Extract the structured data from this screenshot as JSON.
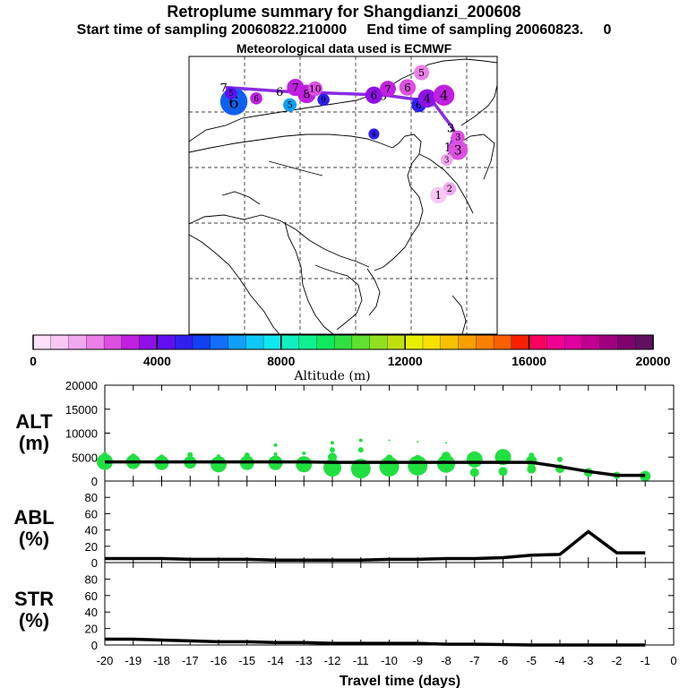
{
  "titles": {
    "line1": "Retroplume summary for Shangdianzi_200608",
    "line2": "Start time of sampling 20060822.210000     End time of sampling 20060823.     0",
    "line3": "Meteorological data used is ECMWF"
  },
  "colorbar": {
    "label": "Altitude (m)",
    "ticks": [
      "0",
      "4000",
      "8000",
      "12000",
      "16000",
      "20000"
    ],
    "colors": [
      "#fde0fa",
      "#f8c8f4",
      "#f2a8ee",
      "#ea80e8",
      "#dc50e0",
      "#c020e0",
      "#9010e8",
      "#6010f0",
      "#3020f0",
      "#1040f0",
      "#1070f8",
      "#10a0f8",
      "#10c8f8",
      "#10e8f0",
      "#10f0c0",
      "#10f090",
      "#10e860",
      "#30e040",
      "#60e030",
      "#90e020",
      "#c0e010",
      "#e8f000",
      "#f8e000",
      "#f8c000",
      "#f8a000",
      "#f88000",
      "#f86000",
      "#f82000",
      "#f80060",
      "#f00090",
      "#e000a0",
      "#c00090",
      "#a00080",
      "#800070",
      "#601060"
    ]
  },
  "map": {
    "trajectory": [
      {
        "label": "7",
        "lon": 76.5,
        "lat": 48.2
      },
      {
        "label": "6",
        "lon": 86.5,
        "lat": 47.6
      },
      {
        "label": "5",
        "lon": 105.0,
        "lat": 47.0
      },
      {
        "label": "4",
        "lon": 113.5,
        "lat": 46.0
      },
      {
        "label": "3",
        "lon": 117.0,
        "lat": 42.0
      },
      {
        "label": "2",
        "lon": 117.5,
        "lat": 41.0
      },
      {
        "label": "1",
        "lon": 116.5,
        "lat": 39.0
      }
    ],
    "clusters": [
      {
        "label": "6",
        "lon": 78.0,
        "lat": 46.0,
        "size": 3.2,
        "color": "#1060f0"
      },
      {
        "label": "5",
        "lon": 77.5,
        "lat": 47.3,
        "size": 0.8,
        "color": "#6010f0"
      },
      {
        "label": "6",
        "lon": 82.0,
        "lat": 46.5,
        "size": 0.8,
        "color": "#c020e0"
      },
      {
        "label": "5",
        "lon": 88.0,
        "lat": 45.5,
        "size": 1.0,
        "color": "#10a0f8"
      },
      {
        "label": "7",
        "lon": 89.0,
        "lat": 48.2,
        "size": 1.6,
        "color": "#c020e0"
      },
      {
        "label": "8",
        "lon": 91.0,
        "lat": 47.2,
        "size": 1.8,
        "color": "#c020e0"
      },
      {
        "label": "10",
        "lon": 92.5,
        "lat": 48.0,
        "size": 1.2,
        "color": "#dc50e0"
      },
      {
        "label": "9",
        "lon": 94.0,
        "lat": 46.3,
        "size": 0.8,
        "color": "#3020f0"
      },
      {
        "label": "6",
        "lon": 103.0,
        "lat": 47.0,
        "size": 1.6,
        "color": "#9010e8"
      },
      {
        "label": "7",
        "lon": 105.5,
        "lat": 48.0,
        "size": 1.4,
        "color": "#c020e0"
      },
      {
        "label": "6",
        "lon": 109.0,
        "lat": 48.2,
        "size": 1.5,
        "color": "#dc50e0"
      },
      {
        "label": "5",
        "lon": 111.5,
        "lat": 50.5,
        "size": 1.3,
        "color": "#ea80e8"
      },
      {
        "label": "6",
        "lon": 111.0,
        "lat": 45.5,
        "size": 1.2,
        "color": "#3020f0"
      },
      {
        "label": "4",
        "lon": 112.5,
        "lat": 46.5,
        "size": 1.8,
        "color": "#9010e8"
      },
      {
        "label": "4",
        "lon": 115.5,
        "lat": 47.0,
        "size": 2.2,
        "color": "#c020e0"
      },
      {
        "label": "4",
        "lon": 103.0,
        "lat": 41.0,
        "size": 0.6,
        "color": "#3020f0"
      },
      {
        "label": "3",
        "lon": 118.0,
        "lat": 38.5,
        "size": 2.0,
        "color": "#dc50e0"
      },
      {
        "label": "3",
        "lon": 118.0,
        "lat": 40.5,
        "size": 1.0,
        "color": "#dc50e0"
      },
      {
        "label": "3",
        "lon": 116.0,
        "lat": 37.0,
        "size": 0.8,
        "color": "#f2a8ee"
      },
      {
        "label": "2",
        "lon": 116.5,
        "lat": 32.5,
        "size": 1.0,
        "color": "#f2a8ee"
      },
      {
        "label": "1",
        "lon": 114.5,
        "lat": 31.5,
        "size": 1.5,
        "color": "#f8c8f4"
      }
    ]
  },
  "chart_data": [
    {
      "type": "line",
      "name": "ALT",
      "ylabel": "ALT (m)",
      "ylabel_line1": "ALT",
      "ylabel_line2": "(m)",
      "ylim": [
        0,
        20000
      ],
      "yticks": [
        "0",
        "5000",
        "10000",
        "15000",
        "20000"
      ],
      "x": [
        -20,
        -19,
        -18,
        -17,
        -16,
        -15,
        -14,
        -13,
        -12,
        -11,
        -10,
        -9,
        -8,
        -7,
        -6,
        -5,
        -4,
        -3,
        -2,
        -1
      ],
      "values": [
        4000,
        4000,
        4000,
        4000,
        4000,
        4000,
        4000,
        4000,
        3900,
        3900,
        3900,
        3900,
        3900,
        3900,
        3900,
        3900,
        3000,
        2000,
        1200,
        1200
      ],
      "scatter_color": "#20e040",
      "points": [
        {
          "x": -20,
          "y": 4000,
          "s": 9
        },
        {
          "x": -20,
          "y": 5500,
          "s": 3
        },
        {
          "x": -19,
          "y": 4000,
          "s": 8
        },
        {
          "x": -19,
          "y": 5200,
          "s": 3
        },
        {
          "x": -18,
          "y": 3800,
          "s": 8
        },
        {
          "x": -18,
          "y": 5000,
          "s": 3
        },
        {
          "x": -17,
          "y": 3900,
          "s": 7
        },
        {
          "x": -17,
          "y": 5500,
          "s": 3
        },
        {
          "x": -16,
          "y": 3500,
          "s": 9
        },
        {
          "x": -16,
          "y": 5200,
          "s": 2
        },
        {
          "x": -15,
          "y": 3800,
          "s": 8
        },
        {
          "x": -15,
          "y": 5400,
          "s": 3
        },
        {
          "x": -14,
          "y": 3800,
          "s": 8
        },
        {
          "x": -14,
          "y": 5600,
          "s": 2
        },
        {
          "x": -14,
          "y": 7500,
          "s": 2
        },
        {
          "x": -13,
          "y": 3500,
          "s": 9
        },
        {
          "x": -13,
          "y": 5800,
          "s": 2
        },
        {
          "x": -12,
          "y": 2800,
          "s": 10
        },
        {
          "x": -12,
          "y": 5000,
          "s": 5
        },
        {
          "x": -12,
          "y": 6500,
          "s": 3
        },
        {
          "x": -12,
          "y": 8000,
          "s": 2
        },
        {
          "x": -11,
          "y": 2600,
          "s": 11
        },
        {
          "x": -11,
          "y": 6500,
          "s": 3
        },
        {
          "x": -11,
          "y": 8500,
          "s": 2
        },
        {
          "x": -10,
          "y": 3000,
          "s": 11
        },
        {
          "x": -10,
          "y": 4800,
          "s": 4
        },
        {
          "x": -10,
          "y": 8500,
          "s": 1
        },
        {
          "x": -9,
          "y": 3200,
          "s": 11
        },
        {
          "x": -9,
          "y": 4500,
          "s": 5
        },
        {
          "x": -9,
          "y": 8200,
          "s": 1
        },
        {
          "x": -8,
          "y": 3600,
          "s": 10
        },
        {
          "x": -8,
          "y": 5200,
          "s": 5
        },
        {
          "x": -8,
          "y": 8000,
          "s": 1
        },
        {
          "x": -7,
          "y": 4500,
          "s": 9
        },
        {
          "x": -7,
          "y": 1800,
          "s": 5
        },
        {
          "x": -6,
          "y": 5000,
          "s": 9
        },
        {
          "x": -6,
          "y": 2000,
          "s": 5
        },
        {
          "x": -5,
          "y": 4200,
          "s": 6
        },
        {
          "x": -5,
          "y": 2500,
          "s": 5
        },
        {
          "x": -5,
          "y": 5400,
          "s": 3
        },
        {
          "x": -4,
          "y": 2600,
          "s": 5
        },
        {
          "x": -4,
          "y": 4500,
          "s": 3
        },
        {
          "x": -3,
          "y": 1800,
          "s": 5
        },
        {
          "x": -2,
          "y": 1200,
          "s": 4
        },
        {
          "x": -1,
          "y": 1000,
          "s": 6
        },
        {
          "x": -1,
          "y": 1600,
          "s": 3
        }
      ]
    },
    {
      "type": "line",
      "name": "ABL",
      "ylabel": "ABL (%)",
      "ylabel_line1": "ABL",
      "ylabel_line2": "(%)",
      "ylim": [
        0,
        100
      ],
      "yticks": [
        "0",
        "20",
        "40",
        "60",
        "80"
      ],
      "x": [
        -20,
        -19,
        -18,
        -17,
        -16,
        -15,
        -14,
        -13,
        -12,
        -11,
        -10,
        -9,
        -8,
        -7,
        -6,
        -5,
        -4,
        -3,
        -2,
        -1
      ],
      "values": [
        5,
        5,
        5,
        4,
        4,
        4,
        3,
        3,
        3,
        3,
        4,
        4,
        5,
        5,
        6,
        9,
        10,
        38,
        12,
        12
      ]
    },
    {
      "type": "line",
      "name": "STR",
      "ylabel": "STR (%)",
      "ylabel_line1": "STR",
      "ylabel_line2": "(%)",
      "ylim": [
        0,
        100
      ],
      "yticks": [
        "0",
        "20",
        "40",
        "60",
        "80"
      ],
      "x": [
        -20,
        -19,
        -18,
        -17,
        -16,
        -15,
        -14,
        -13,
        -12,
        -11,
        -10,
        -9,
        -8,
        -7,
        -6,
        -5,
        -4,
        -3,
        -2,
        -1
      ],
      "values": [
        7,
        7,
        6,
        5,
        4,
        4,
        3,
        3,
        2,
        2,
        2,
        2,
        1,
        1,
        0.5,
        0,
        0,
        0,
        0,
        0
      ],
      "xlabel": "Travel time (days)",
      "xticks": [
        "-20",
        "-19",
        "-18",
        "-17",
        "-16",
        "-15",
        "-14",
        "-13",
        "-12",
        "-11",
        "-10",
        "-9",
        "-8",
        "-7",
        "-6",
        "-5",
        "-4",
        "-3",
        "-2",
        "-1",
        "0"
      ]
    }
  ]
}
